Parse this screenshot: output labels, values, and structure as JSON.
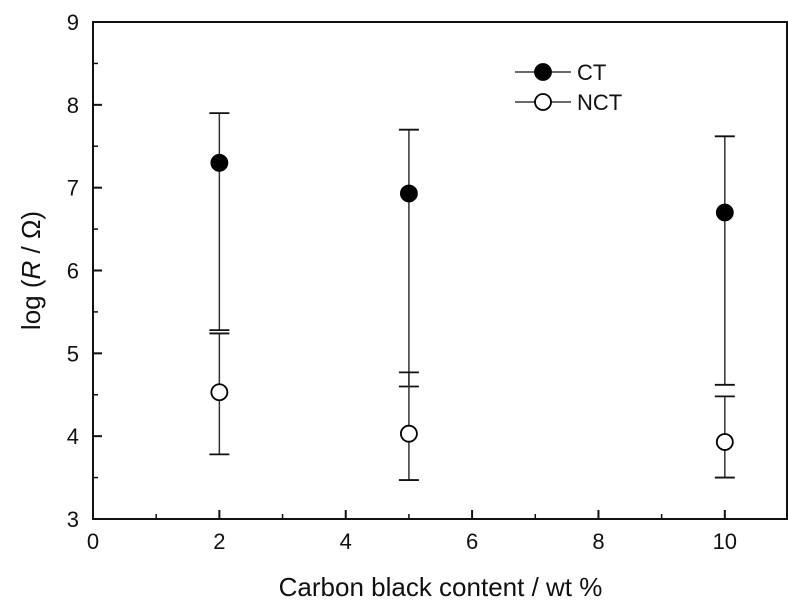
{
  "chart_data": {
    "type": "scatter",
    "xlabel": "Carbon black content / wt %",
    "ylabel_parts": [
      "log (",
      "R",
      " / Ω)"
    ],
    "xlim": [
      0,
      11
    ],
    "ylim": [
      3,
      9
    ],
    "xticks": [
      0,
      2,
      4,
      6,
      8,
      10
    ],
    "yticks": [
      3,
      4,
      5,
      6,
      7,
      8,
      9
    ],
    "grid": false,
    "legend_position": "top-right",
    "series": [
      {
        "name": "CT",
        "marker": "filled-circle",
        "color": "#000000",
        "points": [
          {
            "x": 2,
            "y": 7.3,
            "err_low": 5.28,
            "err_high": 7.9
          },
          {
            "x": 5,
            "y": 6.93,
            "err_low": 4.6,
            "err_high": 7.7
          },
          {
            "x": 10,
            "y": 6.7,
            "err_low": 4.62,
            "err_high": 7.62
          }
        ]
      },
      {
        "name": "NCT",
        "marker": "open-circle",
        "color": "#000000",
        "points": [
          {
            "x": 2,
            "y": 4.53,
            "err_low": 3.78,
            "err_high": 5.24
          },
          {
            "x": 5,
            "y": 4.03,
            "err_low": 3.47,
            "err_high": 4.77
          },
          {
            "x": 10,
            "y": 3.93,
            "err_low": 3.5,
            "err_high": 4.48
          }
        ]
      }
    ]
  }
}
